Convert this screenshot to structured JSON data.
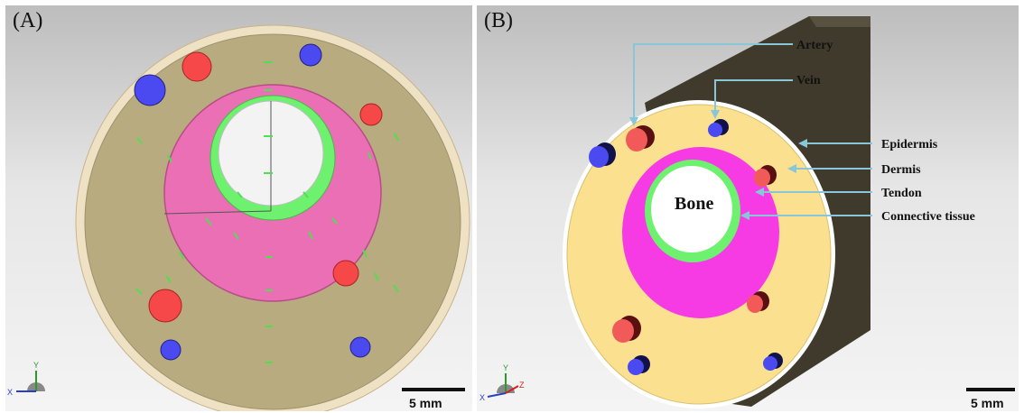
{
  "panels": [
    {
      "label": "(A)",
      "scale_bar": "5 mm"
    },
    {
      "label": "(B)",
      "scale_bar": "5 mm"
    }
  ],
  "labels": {
    "bone": "Bone",
    "artery": "Artery",
    "vein": "Vein",
    "epidermis": "Epidermis",
    "dermis": "Dermis",
    "tendon": "Tendon",
    "connective_tissue": "Connective tissue"
  },
  "axes": {
    "x": "X",
    "y": "Y",
    "z": "Z"
  },
  "colors": {
    "dermis_A": "#b8ab7f",
    "epidermis_A": "#efe2c4",
    "dermis_B": "#fbe08f",
    "epidermis_B": "#ffffff",
    "cylinder_side": "#3f3a2b",
    "tendon": "#ea6fb5",
    "tendon_B": "#f63be4",
    "connective_tissue": "#6ef16e",
    "bone": "#f3f3f3",
    "artery": "#f64848",
    "vein": "#4a4af0",
    "leader": "#88c6d8"
  }
}
